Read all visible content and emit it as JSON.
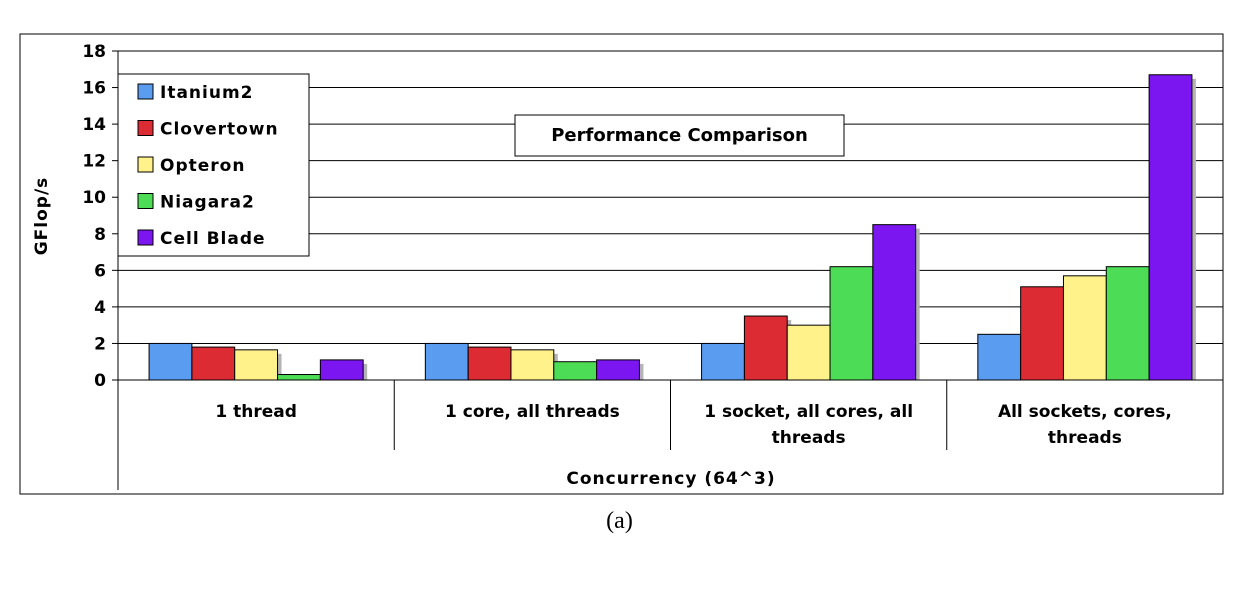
{
  "caption": "(a)",
  "chart_data": {
    "type": "bar",
    "title": "Performance Comparison",
    "xlabel": "Concurrency (64^3)",
    "ylabel": "GFlop/s",
    "ylim": [
      0,
      18
    ],
    "yticks": [
      0,
      2,
      4,
      6,
      8,
      10,
      12,
      14,
      16,
      18
    ],
    "grid": true,
    "legend_position": "top-left",
    "categories": [
      [
        "1 thread"
      ],
      [
        "1 core, all threads"
      ],
      [
        "1 socket, all cores, all",
        "threads"
      ],
      [
        "All sockets, cores,",
        "threads"
      ]
    ],
    "series": [
      {
        "name": "Itanium2",
        "color": "#5a9cf0",
        "values": [
          2.0,
          2.0,
          2.0,
          2.5
        ]
      },
      {
        "name": "Clovertown",
        "color": "#dd2b33",
        "values": [
          1.8,
          1.8,
          3.5,
          5.1
        ]
      },
      {
        "name": "Opteron",
        "color": "#fff28a",
        "values": [
          1.65,
          1.65,
          3.0,
          5.7
        ]
      },
      {
        "name": "Niagara2",
        "color": "#4cdc55",
        "values": [
          0.3,
          1.0,
          6.2,
          6.2
        ]
      },
      {
        "name": "Cell Blade",
        "color": "#7b16f0",
        "values": [
          1.1,
          1.1,
          8.5,
          16.7
        ]
      }
    ]
  }
}
